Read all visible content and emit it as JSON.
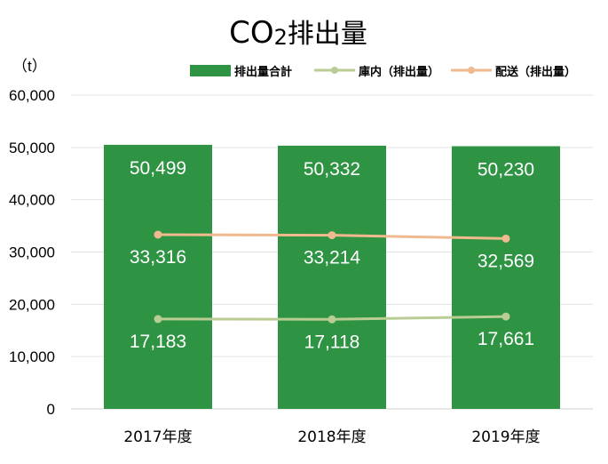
{
  "chart_data": {
    "type": "bar",
    "title_main": "CO",
    "title_sub": "2",
    "title_rest": "排出量",
    "ylabel": "（t）",
    "categories": [
      "2017年度",
      "2018年度",
      "2019年度"
    ],
    "ylim": [
      0,
      60000
    ],
    "yticks": [
      "0",
      "10,000",
      "20,000",
      "30,000",
      "40,000",
      "50,000",
      "60,000"
    ],
    "grid": true,
    "legend_position": "top-right",
    "series": [
      {
        "name": "排出量合計",
        "kind": "bar",
        "color": "#2e9444",
        "values": [
          50499,
          50332,
          50230
        ],
        "labels": [
          "50,499",
          "50,332",
          "50,230"
        ]
      },
      {
        "name": "庫内（排出量）",
        "kind": "line",
        "color": "#b9cc93",
        "values": [
          17183,
          17118,
          17661
        ],
        "labels": [
          "17,183",
          "17,118",
          "17,661"
        ]
      },
      {
        "name": "配送（排出量）",
        "kind": "line",
        "color": "#f0b98e",
        "values": [
          33316,
          33214,
          32569
        ],
        "labels": [
          "33,316",
          "33,214",
          "32,569"
        ]
      }
    ]
  }
}
